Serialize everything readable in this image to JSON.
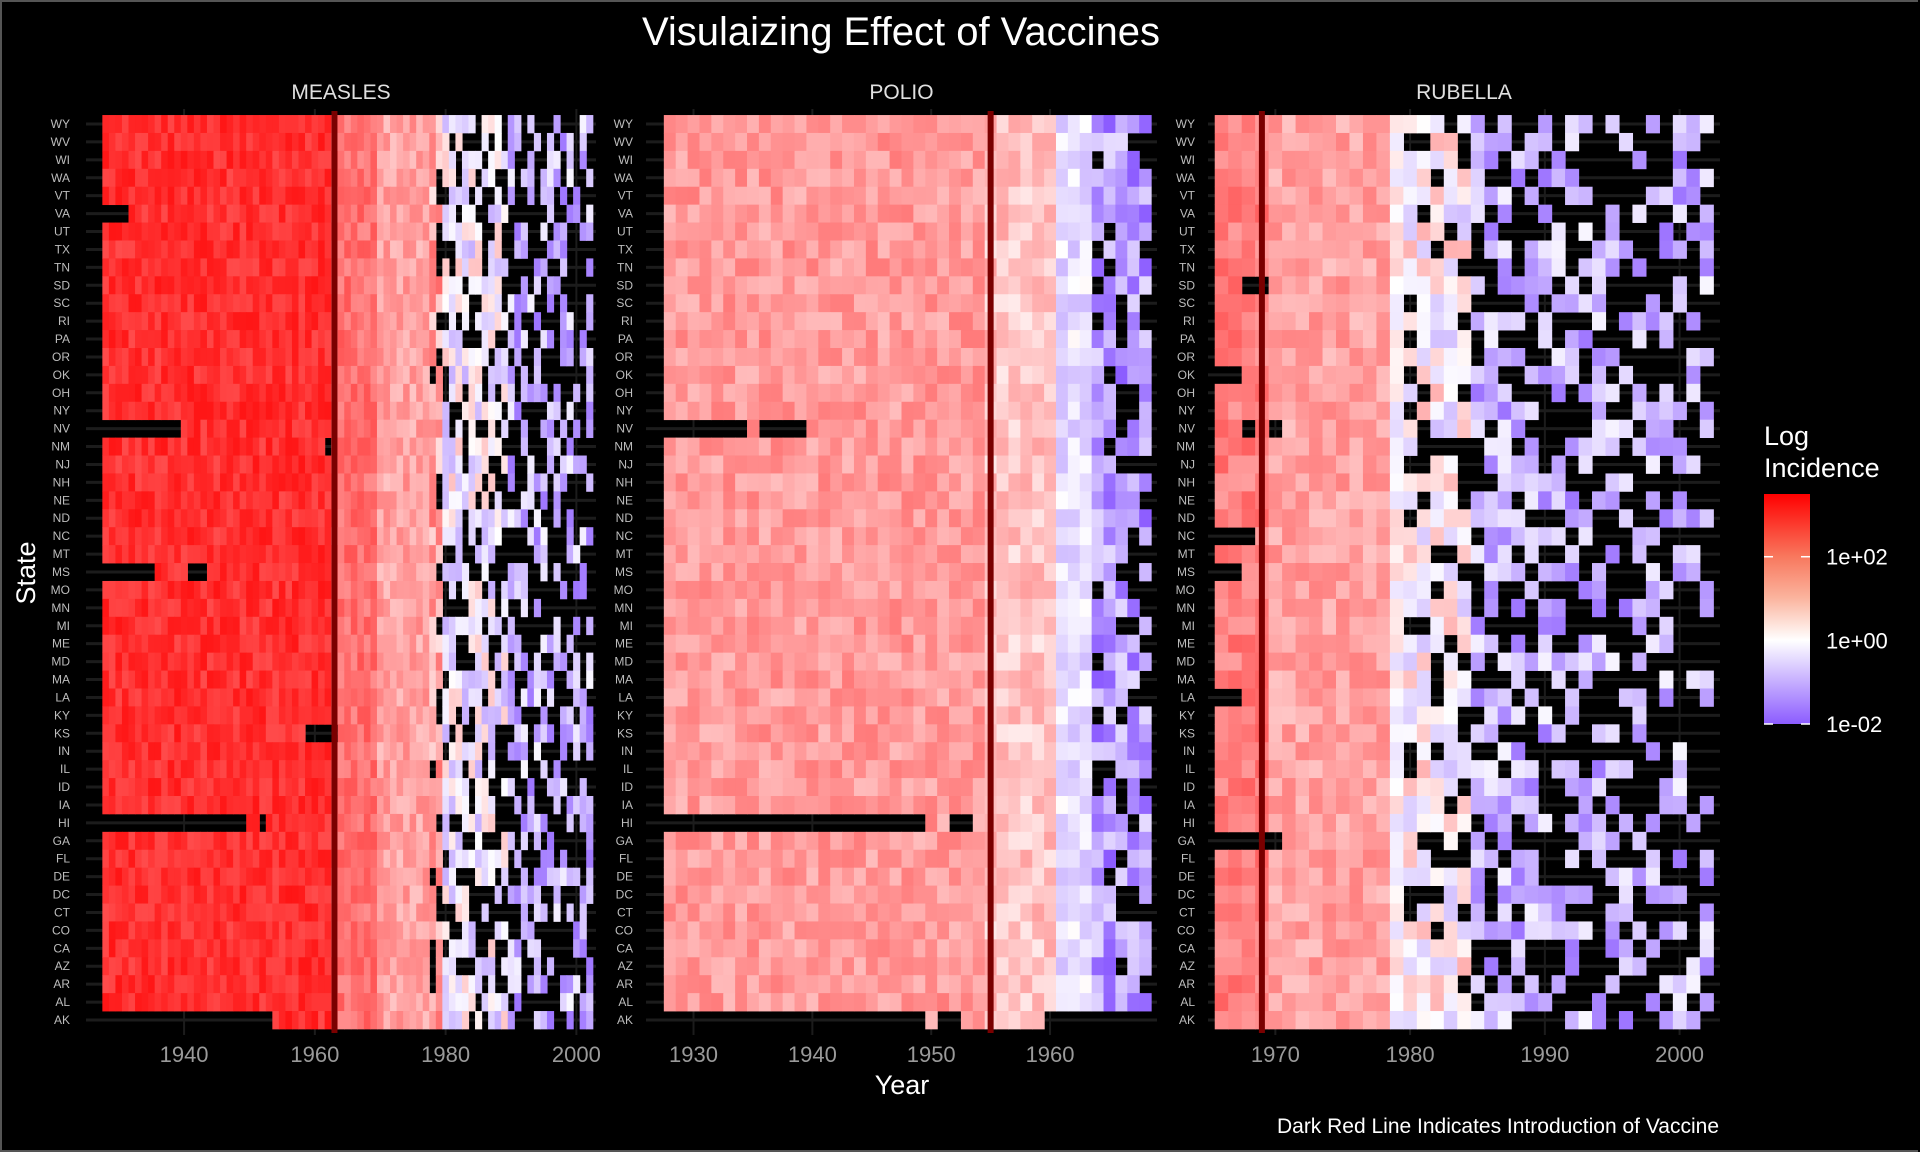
{
  "chart_data": {
    "type": "heatmap",
    "title": "Visulaizing Effect of Vaccines",
    "xlabel": "Year",
    "ylabel": "State",
    "caption": "Dark Red Line Indicates Introduction of Vaccine",
    "legend": {
      "title_lines": [
        "Log",
        "Incidence"
      ],
      "position": "right",
      "scale": "log10",
      "range_log10": [
        -2,
        3.5
      ],
      "ticks": [
        {
          "value_log10": 2,
          "label": "1e+02"
        },
        {
          "value_log10": 0,
          "label": "1e+00"
        },
        {
          "value_log10": -2,
          "label": "1e-02"
        }
      ],
      "colors": {
        "low": "#8c5cff",
        "mid": "#ffffff",
        "high": "#ff0000",
        "missing": "#000000"
      }
    },
    "vaccine_line_color": "#7a0000",
    "grid": true,
    "states": [
      "WY",
      "WV",
      "WI",
      "WA",
      "VT",
      "VA",
      "UT",
      "TX",
      "TN",
      "SD",
      "SC",
      "RI",
      "PA",
      "OR",
      "OK",
      "OH",
      "NY",
      "NV",
      "NM",
      "NJ",
      "NH",
      "NE",
      "ND",
      "NC",
      "MT",
      "MS",
      "MO",
      "MN",
      "MI",
      "ME",
      "MD",
      "MA",
      "LA",
      "KY",
      "KS",
      "IN",
      "IL",
      "ID",
      "IA",
      "HI",
      "GA",
      "FL",
      "DE",
      "DC",
      "CT",
      "CO",
      "CA",
      "AZ",
      "AR",
      "AL",
      "AK"
    ],
    "facets": [
      {
        "name": "MEASLES",
        "years": [
          1928,
          2002
        ],
        "xlim": [
          1925,
          2003
        ],
        "xticks": [
          "1940",
          "1960",
          "1980",
          "2000"
        ],
        "xtick_values": [
          1940,
          1960,
          1980,
          2000
        ],
        "vaccine_year": 1963,
        "approx_log_incidence_by_period": [
          {
            "from": 1928,
            "to": 1962,
            "log10": 2.7
          },
          {
            "from": 1963,
            "to": 1969,
            "log10": 1.7
          },
          {
            "from": 1970,
            "to": 1979,
            "log10": 1.0
          },
          {
            "from": 1980,
            "to": 1989,
            "log10": -0.2
          },
          {
            "from": 1990,
            "to": 2002,
            "log10": -0.9
          }
        ],
        "missing_from_year": 1978,
        "missing_spans": [
          {
            "state": "VA",
            "from": 1928,
            "to": 1931
          },
          {
            "state": "NV",
            "from": 1928,
            "to": 1939
          },
          {
            "state": "MS",
            "from": 1928,
            "to": 1935
          },
          {
            "state": "MS",
            "from": 1941,
            "to": 1943
          },
          {
            "state": "HI",
            "from": 1928,
            "to": 1949
          },
          {
            "state": "HI",
            "from": 1952,
            "to": 1952
          },
          {
            "state": "AK",
            "from": 1928,
            "to": 1953
          },
          {
            "state": "KS",
            "from": 1959,
            "to": 1963
          },
          {
            "state": "NM",
            "from": 1962,
            "to": 1962
          }
        ]
      },
      {
        "name": "POLIO",
        "years": [
          1928,
          1968
        ],
        "xlim": [
          1926,
          1969
        ],
        "xticks": [
          "1930",
          "1940",
          "1950",
          "1960"
        ],
        "xtick_values": [
          1930,
          1940,
          1950,
          1960
        ],
        "vaccine_year": 1955,
        "approx_log_incidence_by_period": [
          {
            "from": 1928,
            "to": 1954,
            "log10": 1.1
          },
          {
            "from": 1955,
            "to": 1960,
            "log10": 0.6
          },
          {
            "from": 1961,
            "to": 1963,
            "log10": -0.4
          },
          {
            "from": 1964,
            "to": 1968,
            "log10": -1.2
          }
        ],
        "missing_from_year": 1964,
        "missing_spans": [
          {
            "state": "NV",
            "from": 1928,
            "to": 1934
          },
          {
            "state": "NV",
            "from": 1936,
            "to": 1939
          },
          {
            "state": "HI",
            "from": 1928,
            "to": 1949
          },
          {
            "state": "HI",
            "from": 1952,
            "to": 1953
          },
          {
            "state": "AK",
            "from": 1928,
            "to": 1949
          },
          {
            "state": "AK",
            "from": 1951,
            "to": 1952
          },
          {
            "state": "AK",
            "from": 1960,
            "to": 1968
          }
        ]
      },
      {
        "name": "RUBELLA",
        "years": [
          1966,
          2002
        ],
        "xlim": [
          1965,
          2003
        ],
        "xticks": [
          "1970",
          "1980",
          "1990",
          "2000"
        ],
        "xtick_values": [
          1970,
          1980,
          1990,
          2000
        ],
        "vaccine_year": 1969,
        "approx_log_incidence_by_period": [
          {
            "from": 1966,
            "to": 1969,
            "log10": 1.5
          },
          {
            "from": 1970,
            "to": 1978,
            "log10": 1.0
          },
          {
            "from": 1979,
            "to": 1984,
            "log10": 0.0
          },
          {
            "from": 1985,
            "to": 2002,
            "log10": -0.9
          }
        ],
        "missing_from_year": 1980,
        "missing_spans": [
          {
            "state": "SD",
            "from": 1968,
            "to": 1969
          },
          {
            "state": "OK",
            "from": 1966,
            "to": 1967
          },
          {
            "state": "NC",
            "from": 1966,
            "to": 1968
          },
          {
            "state": "MS",
            "from": 1966,
            "to": 1967
          },
          {
            "state": "LA",
            "from": 1966,
            "to": 1967
          },
          {
            "state": "GA",
            "from": 1966,
            "to": 1970
          },
          {
            "state": "NV",
            "from": 1968,
            "to": 1968
          },
          {
            "state": "NV",
            "from": 1970,
            "to": 1970
          }
        ]
      }
    ]
  }
}
